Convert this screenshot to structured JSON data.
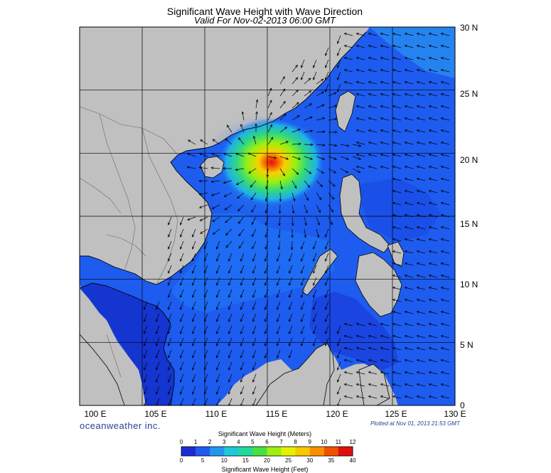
{
  "title": "Significant Wave Height with Wave Direction",
  "subtitle": "Valid For Nov-02-2013 06:00 GMT",
  "lat_labels": [
    "30 N",
    "25 N",
    "20 N",
    "15 N",
    "10 N",
    "5 N",
    "0"
  ],
  "lon_labels": [
    "100 E",
    "105 E",
    "110 E",
    "115 E",
    "120 E",
    "125 E",
    "130 E"
  ],
  "brand": "oceanweather inc.",
  "plotted_note": "Plotted at Nov 01, 2013 21:53 GMT",
  "colorbar": {
    "title_meters": "Significant Wave Height (Meters)",
    "title_feet": "Significant Wave Height (Feet)",
    "meter_ticks": [
      "0",
      "1",
      "2",
      "3",
      "4",
      "5",
      "6",
      "7",
      "8",
      "9",
      "10",
      "11",
      "12"
    ],
    "feet_ticks": [
      "0",
      "5",
      "10",
      "15",
      "20",
      "25",
      "30",
      "35",
      "40"
    ],
    "colors": [
      "#1b2bd8",
      "#1e5cf0",
      "#2196f0",
      "#1fc8d8",
      "#20d89a",
      "#48e040",
      "#9af010",
      "#e6f000",
      "#f8c800",
      "#f89000",
      "#f05000",
      "#e01010"
    ]
  },
  "map": {
    "extent_lon": [
      100,
      130
    ],
    "extent_lat": [
      0,
      30
    ],
    "land_color": "#c0c0c0",
    "storm_center": {
      "lon": 114.8,
      "lat": 19.7
    }
  }
}
